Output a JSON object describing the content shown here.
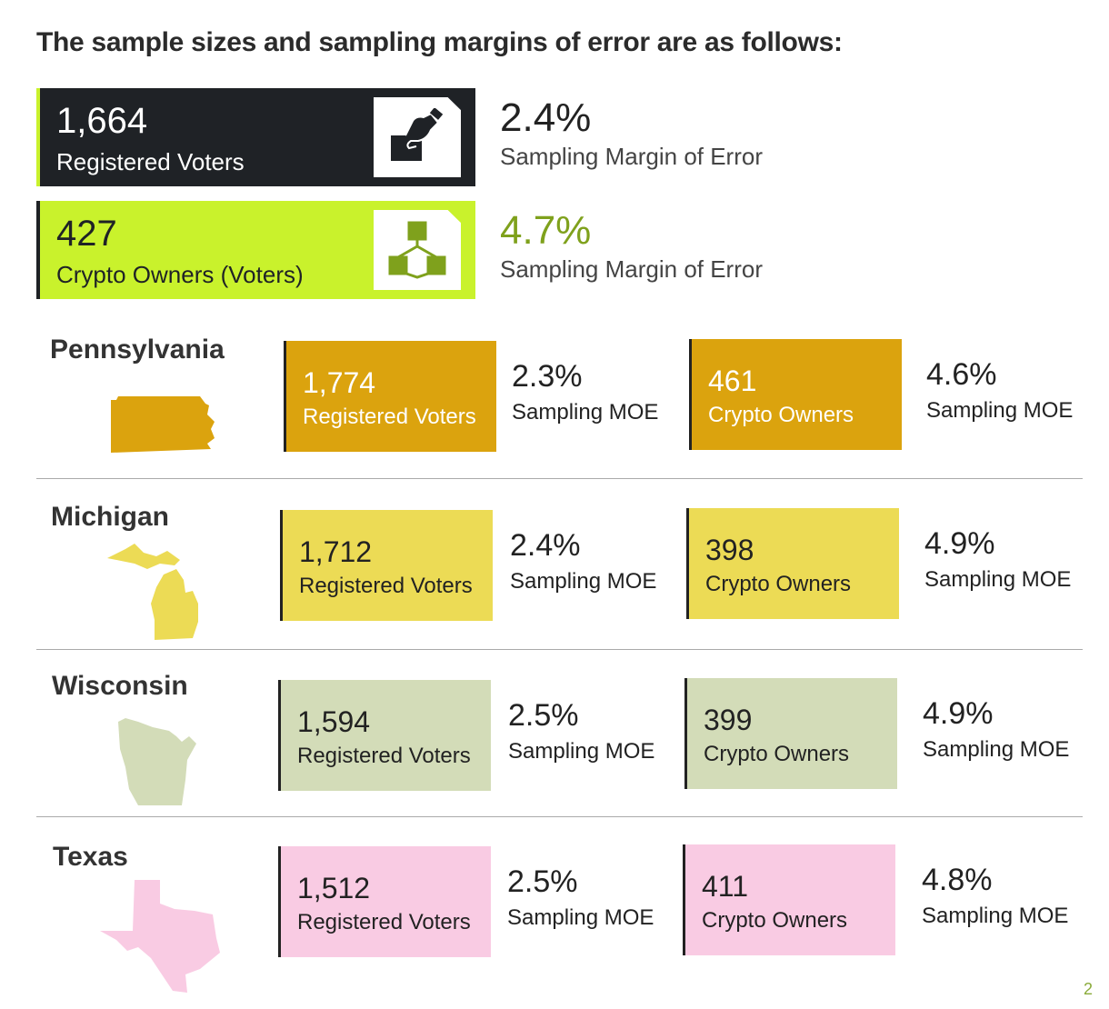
{
  "title": "The sample sizes and sampling margins of error are as follows:",
  "colors": {
    "dark": "#1f2226",
    "lime": "#c9f22c",
    "lime_text": "#7fa11c",
    "pennsylvania": "#dba30e",
    "michigan": "#ecdb55",
    "wisconsin": "#d3dcb8",
    "texas": "#f9cbe3"
  },
  "national": [
    {
      "count": "1,664",
      "label": "Registered Voters",
      "icon": "ballot-hand-icon",
      "moe": "2.4%",
      "moe_label": "Sampling Margin of Error"
    },
    {
      "count": "427",
      "label": "Crypto Owners (Voters)",
      "icon": "blockchain-cubes-icon",
      "moe": "4.7%",
      "moe_label": "Sampling Margin of Error"
    }
  ],
  "states": [
    {
      "name": "Pennsylvania",
      "voters": "1,774",
      "voters_label": "Registered Voters",
      "voters_moe": "2.3%",
      "owners": "461",
      "owners_label": "Crypto Owners",
      "owners_moe": "4.6%",
      "moe_label": "Sampling MOE"
    },
    {
      "name": "Michigan",
      "voters": "1,712",
      "voters_label": "Registered Voters",
      "voters_moe": "2.4%",
      "owners": "398",
      "owners_label": "Crypto Owners",
      "owners_moe": "4.9%",
      "moe_label": "Sampling MOE"
    },
    {
      "name": "Wisconsin",
      "voters": "1,594",
      "voters_label": "Registered Voters",
      "voters_moe": "2.5%",
      "owners": "399",
      "owners_label": "Crypto Owners",
      "owners_moe": "4.9%",
      "moe_label": "Sampling MOE"
    },
    {
      "name": "Texas",
      "voters": "1,512",
      "voters_label": "Registered Voters",
      "voters_moe": "2.5%",
      "owners": "411",
      "owners_label": "Crypto Owners",
      "owners_moe": "4.8%",
      "moe_label": "Sampling MOE"
    }
  ],
  "page_marker": "2"
}
